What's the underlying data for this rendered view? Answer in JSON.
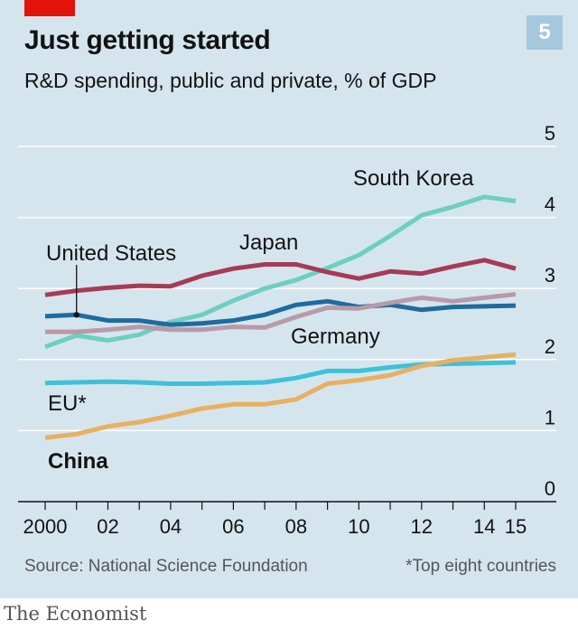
{
  "header": {
    "title": "Just getting started",
    "subtitle": "R&D spending, public and private, % of GDP",
    "chart_number": "5"
  },
  "footer": {
    "source": "Source: National Science Foundation",
    "note": "*Top eight countries",
    "brand": "The Economist"
  },
  "colors": {
    "panel": "#d5e5ee",
    "brand_red": "#e3120b"
  },
  "chart_data": {
    "type": "line",
    "title": "Just getting started",
    "subtitle": "R&D spending, public and private, % of GDP",
    "xlabel": "",
    "ylabel": "",
    "x": [
      2000,
      2001,
      2002,
      2003,
      2004,
      2005,
      2006,
      2007,
      2008,
      2009,
      2010,
      2011,
      2012,
      2013,
      2014,
      2015
    ],
    "x_tick_labels": [
      "2000",
      "02",
      "04",
      "06",
      "08",
      "10",
      "12",
      "14",
      "15"
    ],
    "x_tick_values": [
      2000,
      2002,
      2004,
      2006,
      2008,
      2010,
      2012,
      2014,
      2015
    ],
    "xlim": [
      2000,
      2015
    ],
    "ylim": [
      0,
      5
    ],
    "y_ticks": [
      0,
      1,
      2,
      3,
      4,
      5
    ],
    "grid": true,
    "legend": "direct labels",
    "series": [
      {
        "name": "South Korea",
        "color": "#6dcfc0",
        "values": [
          2.18,
          2.34,
          2.27,
          2.35,
          2.53,
          2.63,
          2.83,
          3.0,
          3.12,
          3.29,
          3.47,
          3.74,
          4.03,
          4.15,
          4.29,
          4.23
        ]
      },
      {
        "name": "Japan",
        "color": "#a63b57",
        "values": [
          2.91,
          2.97,
          3.01,
          3.04,
          3.03,
          3.18,
          3.28,
          3.34,
          3.34,
          3.23,
          3.14,
          3.24,
          3.21,
          3.31,
          3.4,
          3.28
        ]
      },
      {
        "name": "United States",
        "color": "#1f6b9e",
        "values": [
          2.61,
          2.63,
          2.55,
          2.55,
          2.49,
          2.51,
          2.55,
          2.63,
          2.77,
          2.82,
          2.74,
          2.77,
          2.7,
          2.74,
          2.75,
          2.76
        ]
      },
      {
        "name": "Germany",
        "color": "#b99aa8",
        "values": [
          2.39,
          2.39,
          2.42,
          2.46,
          2.42,
          2.42,
          2.46,
          2.45,
          2.6,
          2.73,
          2.72,
          2.8,
          2.87,
          2.82,
          2.87,
          2.92
        ]
      },
      {
        "name": "EU*",
        "color": "#3ec1d8",
        "values": [
          1.67,
          1.68,
          1.69,
          1.68,
          1.66,
          1.66,
          1.67,
          1.68,
          1.74,
          1.84,
          1.84,
          1.89,
          1.93,
          1.94,
          1.95,
          1.96
        ]
      },
      {
        "name": "China",
        "color": "#e8b060",
        "values": [
          0.9,
          0.95,
          1.06,
          1.12,
          1.21,
          1.31,
          1.37,
          1.37,
          1.44,
          1.66,
          1.71,
          1.78,
          1.91,
          1.99,
          2.03,
          2.07
        ]
      }
    ],
    "annotations": [
      {
        "label": "South Korea",
        "bold": false
      },
      {
        "label": "Japan",
        "bold": false
      },
      {
        "label": "United States",
        "bold": false
      },
      {
        "label": "Germany",
        "bold": false
      },
      {
        "label": "EU*",
        "bold": false
      },
      {
        "label": "China",
        "bold": true
      }
    ]
  }
}
